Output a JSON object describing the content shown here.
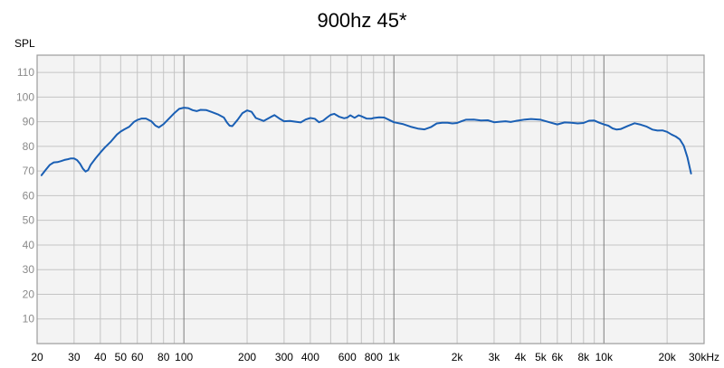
{
  "chart_data": {
    "type": "line",
    "title": "900hz 45*",
    "ylabel": "SPL",
    "xlabel": "",
    "x_scale": "log",
    "xlim": [
      20,
      30000
    ],
    "ylim": [
      0,
      117
    ],
    "grid": true,
    "x_ticks": [
      {
        "value": 20,
        "label": "20"
      },
      {
        "value": 30,
        "label": "30"
      },
      {
        "value": 40,
        "label": "40"
      },
      {
        "value": 50,
        "label": "50"
      },
      {
        "value": 60,
        "label": "60"
      },
      {
        "value": 80,
        "label": "80"
      },
      {
        "value": 100,
        "label": "100"
      },
      {
        "value": 200,
        "label": "200"
      },
      {
        "value": 300,
        "label": "300"
      },
      {
        "value": 400,
        "label": "400"
      },
      {
        "value": 600,
        "label": "600"
      },
      {
        "value": 800,
        "label": "800"
      },
      {
        "value": 1000,
        "label": "1k"
      },
      {
        "value": 2000,
        "label": "2k"
      },
      {
        "value": 3000,
        "label": "3k"
      },
      {
        "value": 4000,
        "label": "4k"
      },
      {
        "value": 5000,
        "label": "5k"
      },
      {
        "value": 6000,
        "label": "6k"
      },
      {
        "value": 8000,
        "label": "8k"
      },
      {
        "value": 10000,
        "label": "10k"
      },
      {
        "value": 20000,
        "label": "20k"
      },
      {
        "value": 30000,
        "label": "30kHz"
      }
    ],
    "y_ticks": [
      10,
      20,
      30,
      40,
      50,
      60,
      70,
      80,
      90,
      100,
      110
    ],
    "series": [
      {
        "color": "#1a5fb4",
        "points": [
          [
            21,
            68.3
          ],
          [
            22,
            70.5
          ],
          [
            23,
            72.5
          ],
          [
            24,
            73.5
          ],
          [
            25,
            73.6
          ],
          [
            26,
            74
          ],
          [
            27,
            74.5
          ],
          [
            28,
            74.8
          ],
          [
            29,
            75.1
          ],
          [
            30,
            75.1
          ],
          [
            31,
            74.4
          ],
          [
            32,
            73
          ],
          [
            33,
            71
          ],
          [
            34,
            69.8
          ],
          [
            35,
            70.4
          ],
          [
            36,
            72.5
          ],
          [
            38,
            75.2
          ],
          [
            40,
            77.5
          ],
          [
            42,
            79.5
          ],
          [
            45,
            82
          ],
          [
            48,
            84.8
          ],
          [
            50,
            86
          ],
          [
            52,
            86.9
          ],
          [
            55,
            88
          ],
          [
            58,
            90
          ],
          [
            60,
            90.7
          ],
          [
            63,
            91.3
          ],
          [
            66,
            91.3
          ],
          [
            70,
            90.2
          ],
          [
            73,
            88.5
          ],
          [
            76,
            87.7
          ],
          [
            80,
            89
          ],
          [
            85,
            91.3
          ],
          [
            90,
            93.5
          ],
          [
            95,
            95.2
          ],
          [
            100,
            95.7
          ],
          [
            105,
            95.5
          ],
          [
            110,
            94.7
          ],
          [
            115,
            94.3
          ],
          [
            120,
            94.8
          ],
          [
            128,
            94.7
          ],
          [
            135,
            94
          ],
          [
            145,
            93
          ],
          [
            155,
            91.7
          ],
          [
            160,
            89.8
          ],
          [
            165,
            88.4
          ],
          [
            170,
            88.2
          ],
          [
            180,
            90.7
          ],
          [
            190,
            93.5
          ],
          [
            200,
            94.6
          ],
          [
            210,
            94
          ],
          [
            220,
            91.5
          ],
          [
            240,
            90.3
          ],
          [
            260,
            92
          ],
          [
            270,
            92.7
          ],
          [
            285,
            91.3
          ],
          [
            300,
            90.2
          ],
          [
            320,
            90.3
          ],
          [
            340,
            90
          ],
          [
            360,
            89.7
          ],
          [
            380,
            90.9
          ],
          [
            400,
            91.5
          ],
          [
            420,
            91.2
          ],
          [
            440,
            89.8
          ],
          [
            460,
            90.4
          ],
          [
            480,
            91.7
          ],
          [
            500,
            92.8
          ],
          [
            520,
            93.2
          ],
          [
            550,
            92
          ],
          [
            580,
            91.4
          ],
          [
            600,
            91.7
          ],
          [
            620,
            92.6
          ],
          [
            650,
            91.6
          ],
          [
            680,
            92.6
          ],
          [
            700,
            92.2
          ],
          [
            740,
            91.3
          ],
          [
            780,
            91.2
          ],
          [
            800,
            91.5
          ],
          [
            850,
            91.8
          ],
          [
            900,
            91.7
          ],
          [
            950,
            90.7
          ],
          [
            1000,
            89.8
          ],
          [
            1100,
            89.1
          ],
          [
            1200,
            88
          ],
          [
            1300,
            87.2
          ],
          [
            1400,
            86.9
          ],
          [
            1500,
            87.8
          ],
          [
            1600,
            89.3
          ],
          [
            1700,
            89.6
          ],
          [
            1800,
            89.6
          ],
          [
            1900,
            89.3
          ],
          [
            2000,
            89.5
          ],
          [
            2100,
            90.2
          ],
          [
            2200,
            90.8
          ],
          [
            2400,
            90.9
          ],
          [
            2600,
            90.5
          ],
          [
            2800,
            90.6
          ],
          [
            3000,
            89.8
          ],
          [
            3200,
            90
          ],
          [
            3400,
            90.2
          ],
          [
            3600,
            89.9
          ],
          [
            3800,
            90.3
          ],
          [
            4000,
            90.6
          ],
          [
            4200,
            90.9
          ],
          [
            4500,
            91.1
          ],
          [
            5000,
            90.8
          ],
          [
            5500,
            89.8
          ],
          [
            6000,
            88.9
          ],
          [
            6500,
            89.7
          ],
          [
            7000,
            89.6
          ],
          [
            7500,
            89.3
          ],
          [
            8000,
            89.5
          ],
          [
            8500,
            90.4
          ],
          [
            9000,
            90.5
          ],
          [
            9500,
            89.6
          ],
          [
            10000,
            88.9
          ],
          [
            10500,
            88.4
          ],
          [
            11000,
            87.3
          ],
          [
            11500,
            86.8
          ],
          [
            12000,
            87
          ],
          [
            13000,
            88.3
          ],
          [
            14000,
            89.4
          ],
          [
            15000,
            88.8
          ],
          [
            16000,
            88
          ],
          [
            17000,
            86.8
          ],
          [
            18000,
            86.4
          ],
          [
            19000,
            86.5
          ],
          [
            20000,
            85.9
          ],
          [
            21000,
            84.8
          ],
          [
            22000,
            84
          ],
          [
            23000,
            82.8
          ],
          [
            24000,
            80.3
          ],
          [
            25000,
            75.5
          ],
          [
            26000,
            69
          ]
        ]
      }
    ]
  }
}
